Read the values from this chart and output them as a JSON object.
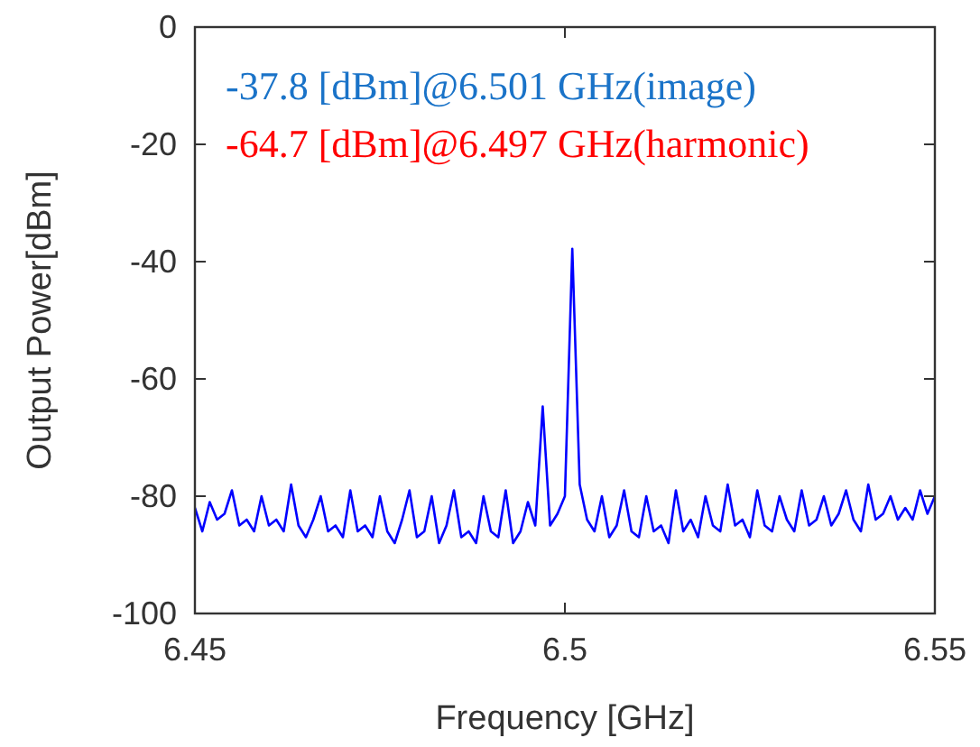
{
  "chart_data": {
    "type": "line",
    "xlabel": "Frequency [GHz]",
    "ylabel": "Output Power[dBm]",
    "annotations": [
      "-37.8 [dBm]@6.501 GHz(image)",
      "-64.7 [dBm]@6.497 GHz(harmonic)"
    ],
    "xlim": [
      6.45,
      6.55
    ],
    "xticks": [
      6.45,
      6.5,
      6.55
    ],
    "ylim": [
      -100,
      0
    ],
    "yticks": [
      -100,
      -80,
      -60,
      -40,
      -20,
      0
    ],
    "grid": false,
    "marker": "none",
    "line_style": "solid",
    "series": [
      {
        "color": "#0000ff",
        "x": [
          6.45,
          6.451,
          6.452,
          6.453,
          6.454,
          6.455,
          6.456,
          6.457,
          6.458,
          6.459,
          6.46,
          6.461,
          6.462,
          6.463,
          6.464,
          6.465,
          6.466,
          6.467,
          6.468,
          6.469,
          6.47,
          6.471,
          6.472,
          6.473,
          6.474,
          6.475,
          6.476,
          6.477,
          6.478,
          6.479,
          6.48,
          6.481,
          6.482,
          6.483,
          6.484,
          6.485,
          6.486,
          6.487,
          6.488,
          6.489,
          6.49,
          6.491,
          6.492,
          6.493,
          6.494,
          6.495,
          6.496,
          6.497,
          6.498,
          6.499,
          6.5,
          6.501,
          6.502,
          6.503,
          6.504,
          6.505,
          6.506,
          6.507,
          6.508,
          6.509,
          6.51,
          6.511,
          6.512,
          6.513,
          6.514,
          6.515,
          6.516,
          6.517,
          6.518,
          6.519,
          6.52,
          6.521,
          6.522,
          6.523,
          6.524,
          6.525,
          6.526,
          6.527,
          6.528,
          6.529,
          6.53,
          6.531,
          6.532,
          6.533,
          6.534,
          6.535,
          6.536,
          6.537,
          6.538,
          6.539,
          6.54,
          6.541,
          6.542,
          6.543,
          6.544,
          6.545,
          6.546,
          6.547,
          6.548,
          6.549,
          6.55
        ],
        "values": [
          -82,
          -86,
          -81,
          -84,
          -83,
          -79,
          -85,
          -84,
          -86,
          -80,
          -85,
          -84,
          -86,
          -78,
          -85,
          -87,
          -84,
          -80,
          -86,
          -85,
          -87,
          -79,
          -86,
          -85,
          -87,
          -80,
          -86,
          -88,
          -84,
          -79,
          -87,
          -86,
          -80,
          -88,
          -85,
          -79,
          -87,
          -86,
          -88,
          -80,
          -86,
          -87,
          -79,
          -88,
          -86,
          -81,
          -85,
          -64.7,
          -85,
          -83,
          -80,
          -37.8,
          -78,
          -84,
          -86,
          -80,
          -87,
          -85,
          -79,
          -86,
          -87,
          -80,
          -86,
          -85,
          -88,
          -79,
          -86,
          -84,
          -87,
          -80,
          -85,
          -86,
          -78,
          -85,
          -84,
          -87,
          -79,
          -85,
          -86,
          -80,
          -84,
          -86,
          -79,
          -85,
          -84,
          -80,
          -85,
          -83,
          -79,
          -84,
          -86,
          -78,
          -84,
          -83,
          -80,
          -84,
          -82,
          -84,
          -79,
          -83,
          -80
        ]
      }
    ]
  }
}
